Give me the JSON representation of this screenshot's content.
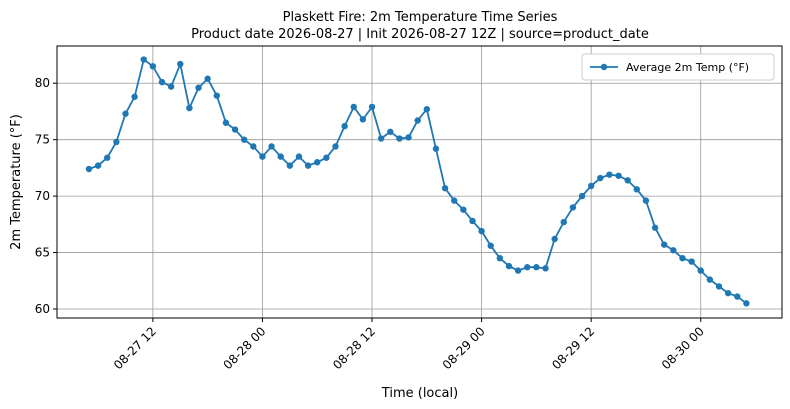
{
  "chart_data": {
    "type": "line",
    "title": "Plaskett Fire: 2m Temperature Time Series",
    "subtitle": "Product date 2026-08-27 | Init 2026-08-27 12Z | source=product_date",
    "x_label": "Time (local)",
    "y_label": "2m Temperature (°F)",
    "x": [
      "08-27 05",
      "08-27 06",
      "08-27 07",
      "08-27 08",
      "08-27 09",
      "08-27 10",
      "08-27 11",
      "08-27 12",
      "08-27 13",
      "08-27 14",
      "08-27 15",
      "08-27 16",
      "08-27 17",
      "08-27 18",
      "08-27 19",
      "08-27 20",
      "08-27 21",
      "08-27 22",
      "08-27 23",
      "08-28 00",
      "08-28 01",
      "08-28 02",
      "08-28 03",
      "08-28 04",
      "08-28 05",
      "08-28 06",
      "08-28 07",
      "08-28 08",
      "08-28 09",
      "08-28 10",
      "08-28 11",
      "08-28 12",
      "08-28 13",
      "08-28 14",
      "08-28 15",
      "08-28 16",
      "08-28 17",
      "08-28 18",
      "08-28 19",
      "08-28 20",
      "08-28 21",
      "08-28 22",
      "08-28 23",
      "08-29 00",
      "08-29 01",
      "08-29 02",
      "08-29 03",
      "08-29 04",
      "08-29 05",
      "08-29 06",
      "08-29 07",
      "08-29 08",
      "08-29 09",
      "08-29 10",
      "08-29 11",
      "08-29 12",
      "08-29 13",
      "08-29 14",
      "08-29 15",
      "08-29 16",
      "08-29 17",
      "08-29 18",
      "08-29 19",
      "08-29 20",
      "08-29 21",
      "08-29 22",
      "08-29 23",
      "08-30 00",
      "08-30 01",
      "08-30 02",
      "08-30 03",
      "08-30 04",
      "08-30 05"
    ],
    "series": [
      {
        "name": "Average 2m Temp (°F)",
        "color": "#1f77b4",
        "values": [
          72.4,
          72.7,
          73.4,
          74.8,
          77.3,
          78.8,
          82.1,
          81.5,
          80.1,
          79.7,
          81.7,
          77.8,
          79.6,
          80.4,
          78.9,
          76.5,
          75.9,
          75.0,
          74.4,
          73.5,
          74.4,
          73.5,
          72.7,
          73.5,
          72.7,
          73.0,
          73.4,
          74.4,
          76.2,
          77.9,
          76.8,
          77.9,
          75.1,
          75.7,
          75.1,
          75.2,
          76.7,
          77.7,
          74.2,
          70.7,
          69.6,
          68.8,
          67.8,
          66.9,
          65.6,
          64.5,
          63.8,
          63.4,
          63.7,
          63.7,
          63.6,
          66.2,
          67.7,
          69.0,
          70.0,
          70.9,
          71.6,
          71.9,
          71.8,
          71.4,
          70.6,
          69.6,
          67.2,
          65.7,
          65.2,
          64.5,
          64.2,
          63.4,
          62.6,
          62.0,
          61.4,
          61.1,
          60.5
        ]
      }
    ],
    "xlim": [
      "08-27 01:30",
      "08-30 08:54"
    ],
    "xticks": [
      "08-27 12",
      "08-28 00",
      "08-28 12",
      "08-29 00",
      "08-29 12",
      "08-30 00"
    ],
    "ylim": [
      59.2,
      83.3
    ],
    "yticks": [
      60,
      65,
      70,
      75,
      80
    ],
    "grid": true,
    "legend": "upper right"
  }
}
